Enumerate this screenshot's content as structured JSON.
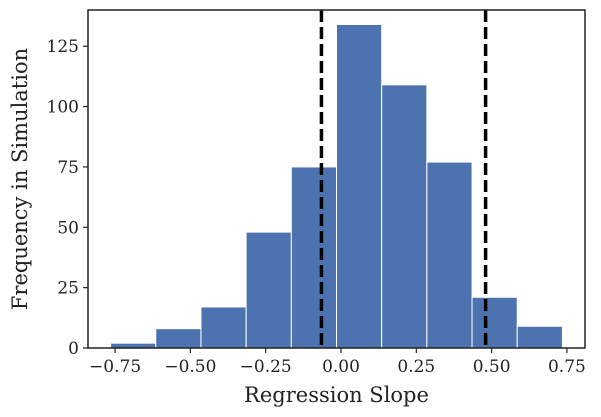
{
  "chart_data": {
    "type": "bar",
    "subtype": "histogram",
    "title": "",
    "xlabel": "Regression Slope",
    "ylabel": "Frequency in Simulation",
    "bins": [
      {
        "start": -0.765,
        "end": -0.615,
        "count": 2
      },
      {
        "start": -0.615,
        "end": -0.465,
        "count": 8
      },
      {
        "start": -0.465,
        "end": -0.315,
        "count": 17
      },
      {
        "start": -0.315,
        "end": -0.165,
        "count": 48
      },
      {
        "start": -0.165,
        "end": -0.015,
        "count": 75
      },
      {
        "start": -0.015,
        "end": 0.135,
        "count": 134
      },
      {
        "start": 0.135,
        "end": 0.285,
        "count": 109
      },
      {
        "start": 0.285,
        "end": 0.435,
        "count": 77
      },
      {
        "start": 0.435,
        "end": 0.585,
        "count": 21
      },
      {
        "start": 0.585,
        "end": 0.735,
        "count": 9
      }
    ],
    "vlines": [
      {
        "x": -0.065,
        "style": "dashed",
        "color": "#000000"
      },
      {
        "x": 0.48,
        "style": "dashed",
        "color": "#000000"
      }
    ],
    "xlim": [
      -0.84,
      0.81
    ],
    "ylim": [
      0,
      140
    ],
    "xticks": [
      -0.75,
      -0.5,
      -0.25,
      0.0,
      0.25,
      0.5,
      0.75
    ],
    "xtick_labels": [
      "−0.75",
      "−0.50",
      "−0.25",
      "0.00",
      "0.25",
      "0.50",
      "0.75"
    ],
    "yticks": [
      0,
      25,
      50,
      75,
      100,
      125
    ],
    "ytick_labels": [
      "0",
      "25",
      "50",
      "75",
      "100",
      "125"
    ],
    "grid": false,
    "bar_color": "#4c72b0",
    "edge_color": "#ffffff",
    "axes_color": "#222222"
  }
}
